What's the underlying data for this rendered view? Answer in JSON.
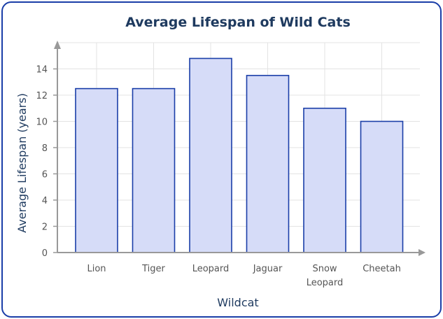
{
  "chart_data": {
    "type": "bar",
    "title": "Average Lifespan of Wild Cats",
    "xlabel": "Wildcat",
    "ylabel": "Average Lifespan (years)",
    "categories": [
      "Lion",
      "Tiger",
      "Leopard",
      "Jaguar",
      "Snow Leopard",
      "Cheetah"
    ],
    "values": [
      12.5,
      12.5,
      14.8,
      13.5,
      11,
      10
    ],
    "ylim": [
      0,
      16
    ],
    "yticks": [
      0,
      2,
      4,
      6,
      8,
      10,
      12,
      14
    ],
    "grid": true,
    "colors": {
      "bar_fill": "#d6dcf8",
      "bar_stroke": "#1a3ea8",
      "title": "#1e3a5f",
      "axis_label": "#1e3a5f",
      "tick_label": "#555555",
      "axis": "#999999",
      "grid": "#e3e3e3",
      "border": "#1a3ea8"
    }
  }
}
